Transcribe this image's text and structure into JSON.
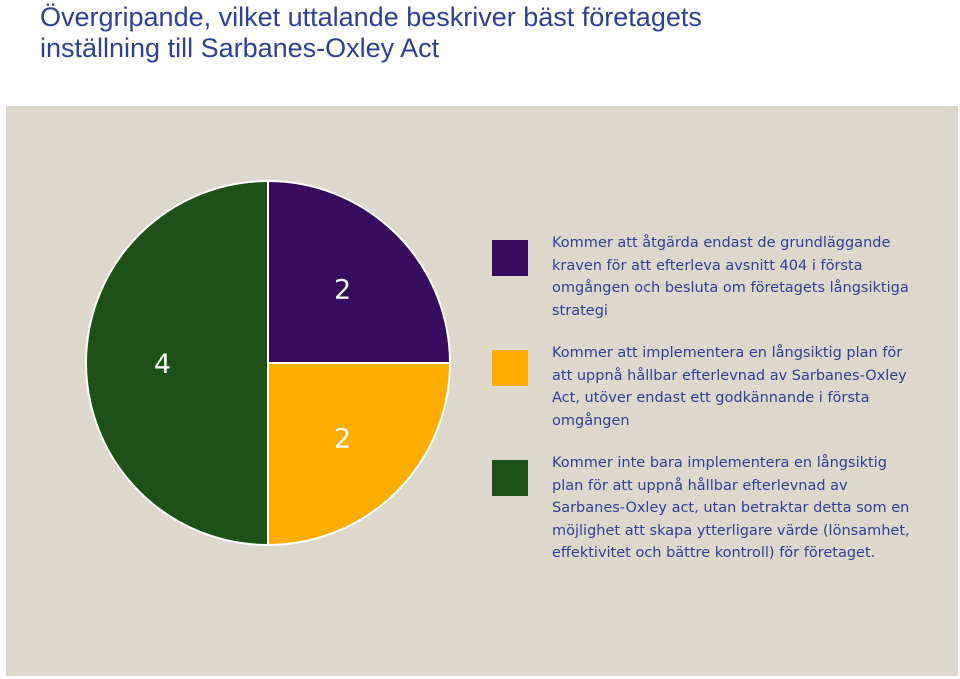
{
  "title": {
    "line1": "Övergripande, vilket uttalande beskriver bäst företagets",
    "line2": "inställning till Sarbanes-Oxley Act"
  },
  "chart_data": {
    "type": "pie",
    "title": "Övergripande, vilket uttalande beskriver bäst företagets inställning till Sarbanes-Oxley Act",
    "start_angle_deg": 0,
    "direction": "clockwise",
    "slices": [
      {
        "label": "Kommer att åtgärda endast de grundläggande kraven för att efterleva avsnitt 404 i första omgången och besluta om företagets långsiktiga strategi",
        "value": 2,
        "value_label": "2",
        "color": "#360a5c"
      },
      {
        "label": "Kommer att implementera en långsiktig plan för att uppnå hållbar efterlevnad av Sarbanes-Oxley Act, utöver endast ett godkännande i första omgången",
        "value": 2,
        "value_label": "2",
        "color": "#fdad00"
      },
      {
        "label": "Kommer inte bara implementera en långsiktig plan för att uppnå hållbar efterlevnad av Sarbanes-Oxley act, utan betraktar detta som en möjlighet att skapa ytterligare värde (lönsamhet, effektivitet och bättre kontroll) för företaget.",
        "value": 4,
        "value_label": "4",
        "color": "#1e5118"
      }
    ],
    "legend_placement": "right",
    "background": "#ded7cc",
    "label_color": "#ffffff"
  }
}
